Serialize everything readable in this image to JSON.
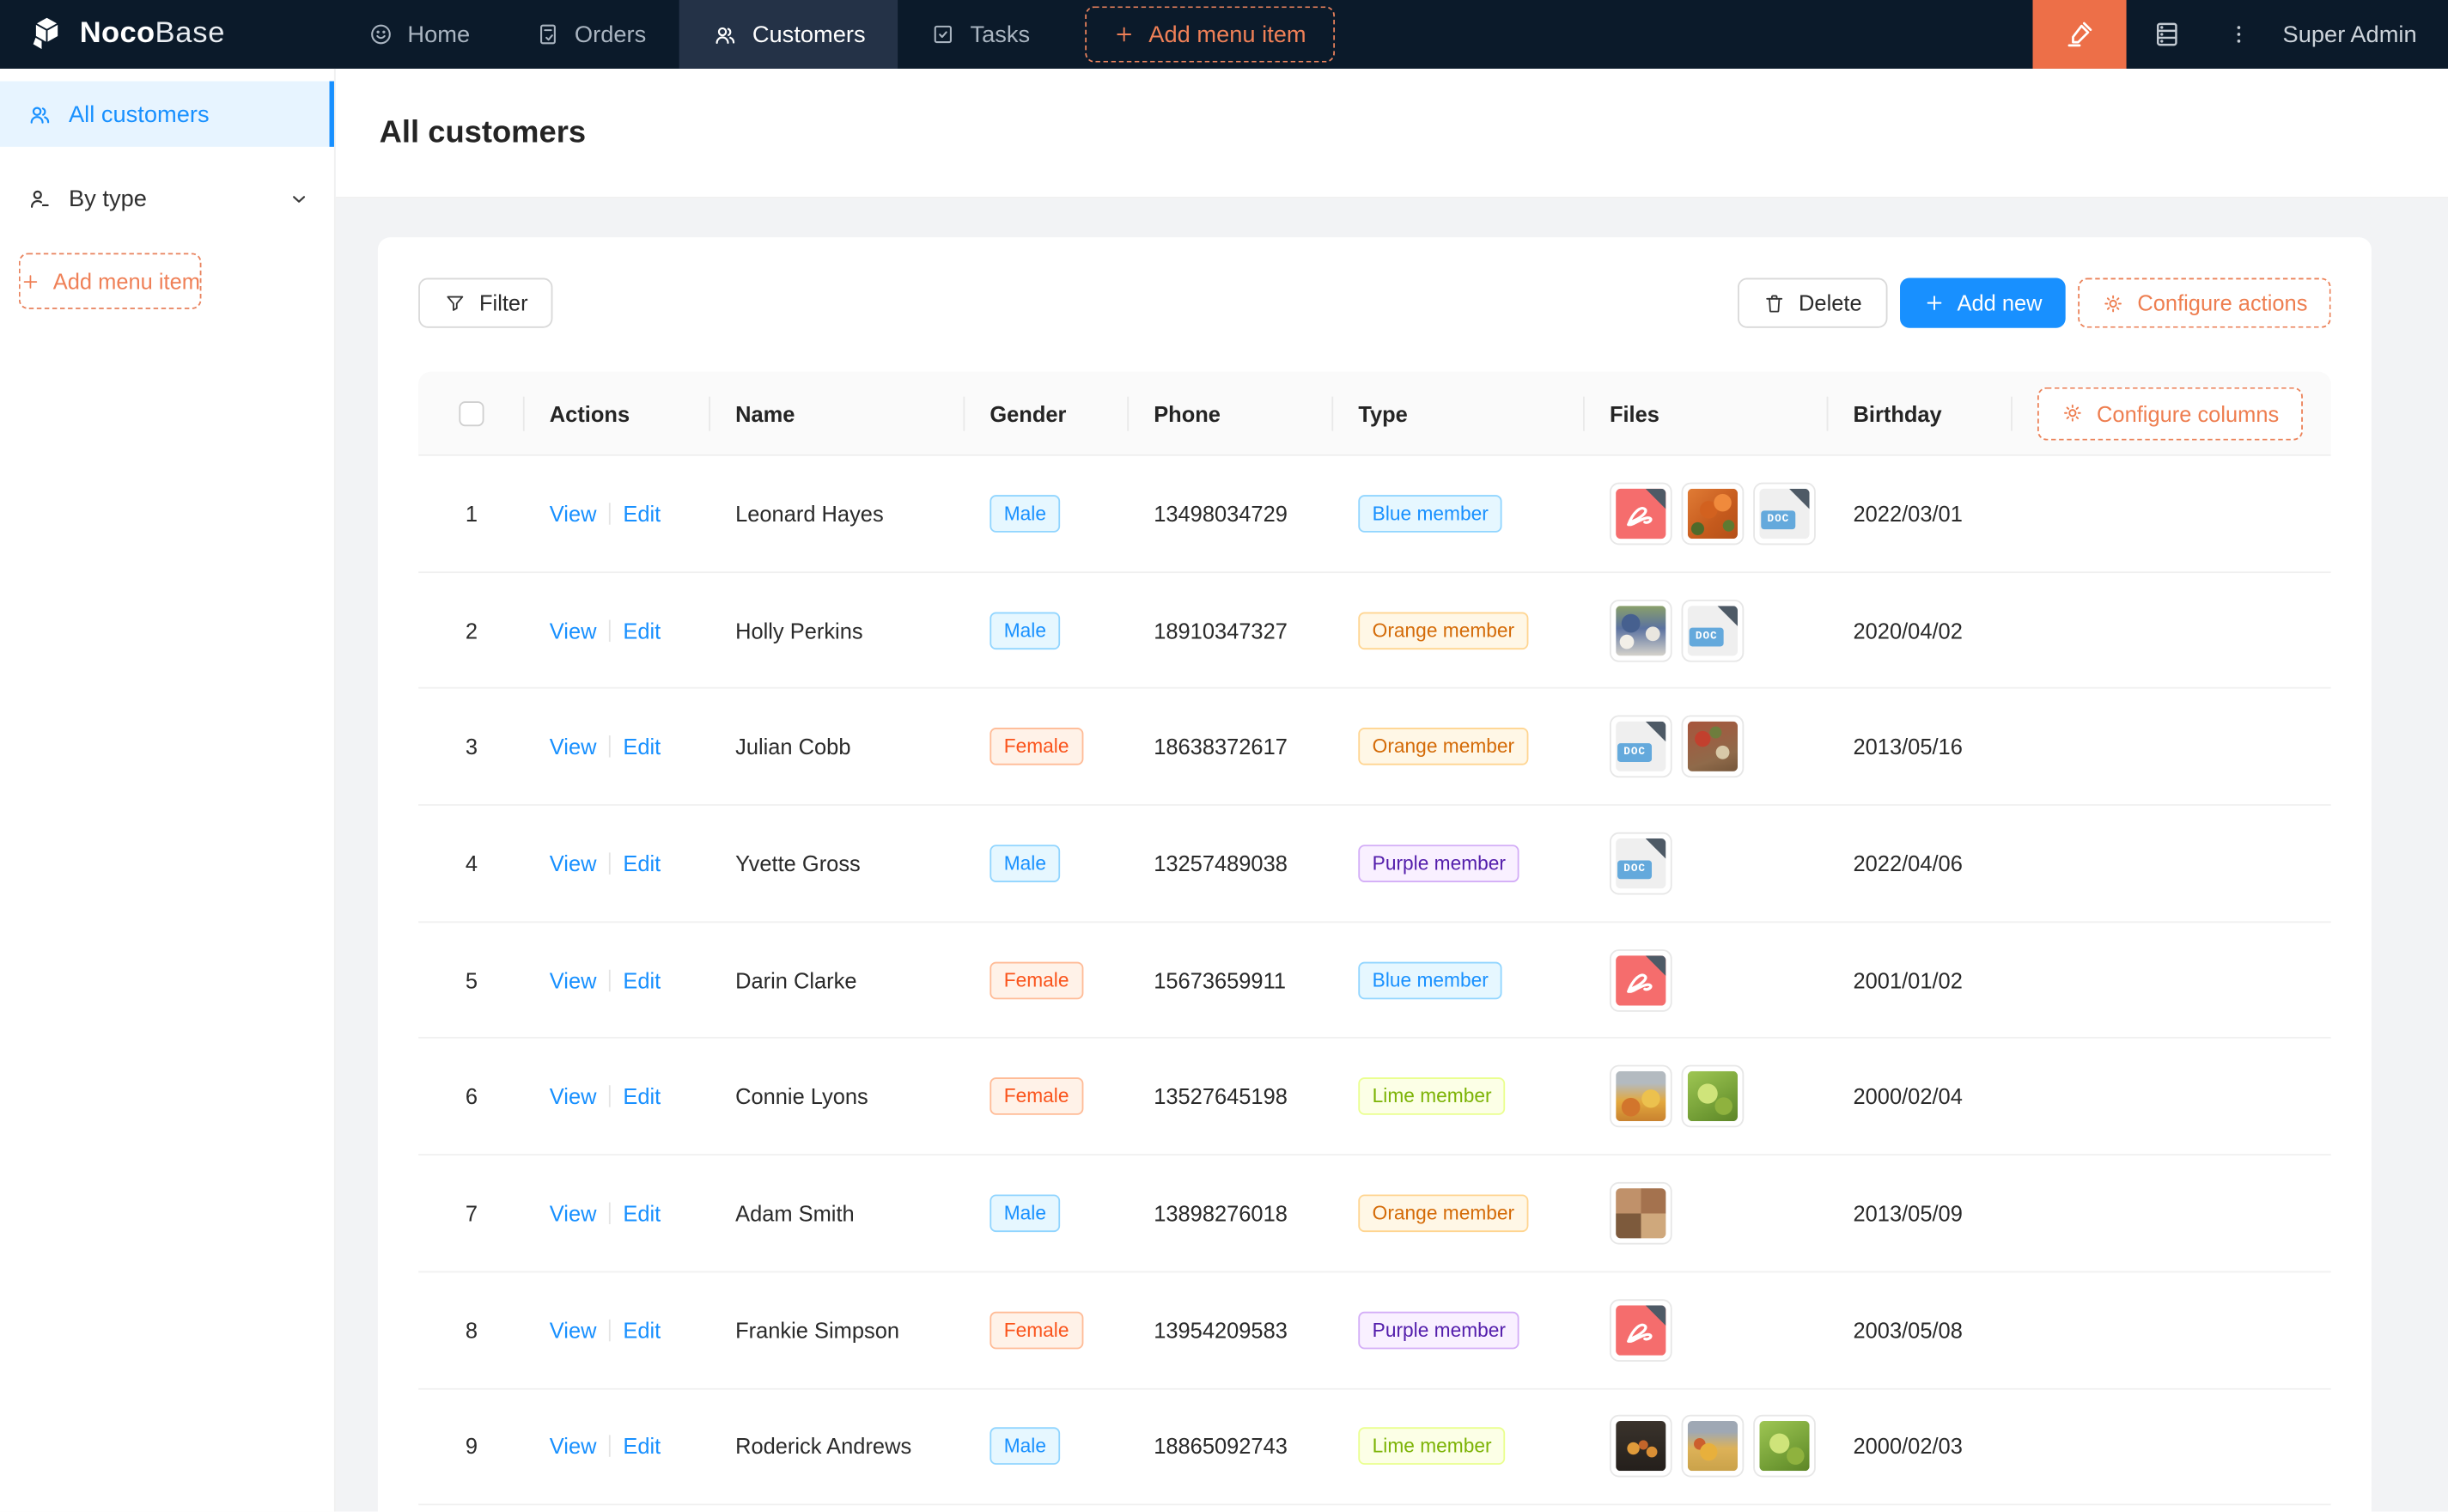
{
  "colors": {
    "accent_blue": "#1890ff",
    "designer_orange": "#ed6f48",
    "dashed_orange": "#ee7e50",
    "navbar_bg": "#0b1a2a"
  },
  "navbar": {
    "logo_bold": "Noco",
    "logo_light": "Base",
    "items": [
      {
        "label": "Home"
      },
      {
        "label": "Orders"
      },
      {
        "label": "Customers",
        "active": true
      },
      {
        "label": "Tasks"
      }
    ],
    "add_menu_item_label": "Add menu item",
    "user": "Super Admin"
  },
  "sidebar": {
    "items": [
      {
        "label": "All customers",
        "active": true
      },
      {
        "label": "By type"
      }
    ],
    "add_menu_item_label": "Add menu item"
  },
  "page": {
    "title": "All customers"
  },
  "toolbar": {
    "filter_label": "Filter",
    "delete_label": "Delete",
    "add_new_label": "Add new",
    "configure_actions_label": "Configure actions"
  },
  "table": {
    "columns": [
      "",
      "Actions",
      "Name",
      "Gender",
      "Phone",
      "Type",
      "Files",
      "Birthday"
    ],
    "configure_columns_label": "Configure columns",
    "action_labels": {
      "view": "View",
      "edit": "Edit"
    },
    "doc_badge": "DOC",
    "rows": [
      {
        "num": 1,
        "name": "Leonard Hayes",
        "gender": "Male",
        "gender_color": "blue",
        "phone": "13498034729",
        "type": "Blue member",
        "type_color": "blue",
        "files": [
          {
            "kind": "pdf"
          },
          {
            "kind": "img",
            "img": "food-orange"
          },
          {
            "kind": "doc"
          }
        ],
        "birthday": "2022/03/01"
      },
      {
        "num": 2,
        "name": "Holly Perkins",
        "gender": "Male",
        "gender_color": "blue",
        "phone": "18910347327",
        "type": "Orange member",
        "type_color": "orange",
        "files": [
          {
            "kind": "img",
            "img": "crowd-blue"
          },
          {
            "kind": "doc"
          }
        ],
        "birthday": "2020/04/02"
      },
      {
        "num": 3,
        "name": "Julian Cobb",
        "gender": "Female",
        "gender_color": "volcano",
        "phone": "18638372617",
        "type": "Orange member",
        "type_color": "orange",
        "files": [
          {
            "kind": "doc"
          },
          {
            "kind": "img",
            "img": "platter-red"
          }
        ],
        "birthday": "2013/05/16"
      },
      {
        "num": 4,
        "name": "Yvette Gross",
        "gender": "Male",
        "gender_color": "blue",
        "phone": "13257489038",
        "type": "Purple member",
        "type_color": "purple",
        "files": [
          {
            "kind": "doc"
          }
        ],
        "birthday": "2022/04/06"
      },
      {
        "num": 5,
        "name": "Darin Clarke",
        "gender": "Female",
        "gender_color": "volcano",
        "phone": "15673659911",
        "type": "Blue member",
        "type_color": "blue",
        "files": [
          {
            "kind": "pdf"
          }
        ],
        "birthday": "2001/01/02"
      },
      {
        "num": 6,
        "name": "Connie Lyons",
        "gender": "Female",
        "gender_color": "volcano",
        "phone": "13527645198",
        "type": "Lime member",
        "type_color": "lime",
        "files": [
          {
            "kind": "img",
            "img": "food-yellow"
          },
          {
            "kind": "img",
            "img": "lettuce"
          }
        ],
        "birthday": "2000/02/04"
      },
      {
        "num": 7,
        "name": "Adam Smith",
        "gender": "Male",
        "gender_color": "blue",
        "phone": "13898276018",
        "type": "Orange member",
        "type_color": "orange",
        "files": [
          {
            "kind": "img",
            "img": "collage-brown"
          }
        ],
        "birthday": "2013/05/09"
      },
      {
        "num": 8,
        "name": "Frankie Simpson",
        "gender": "Female",
        "gender_color": "volcano",
        "phone": "13954209583",
        "type": "Purple member",
        "type_color": "purple",
        "files": [
          {
            "kind": "pdf"
          }
        ],
        "birthday": "2003/05/08"
      },
      {
        "num": 9,
        "name": "Roderick Andrews",
        "gender": "Male",
        "gender_color": "blue",
        "phone": "18865092743",
        "type": "Lime member",
        "type_color": "lime",
        "files": [
          {
            "kind": "img",
            "img": "fruit-dark"
          },
          {
            "kind": "img",
            "img": "food-golden"
          },
          {
            "kind": "img",
            "img": "lettuce"
          }
        ],
        "birthday": "2000/02/03"
      }
    ]
  }
}
